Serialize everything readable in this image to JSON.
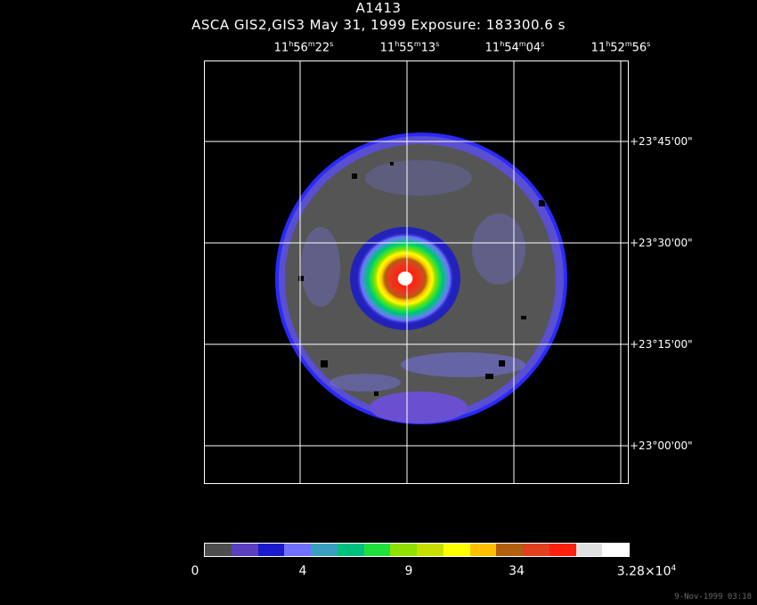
{
  "title": "A1413",
  "subtitle": "ASCA GIS2,GIS3 May 31, 1999 Exposure: 183300.6 s",
  "ra_labels": [
    {
      "h": "11",
      "m": "56",
      "s": "22"
    },
    {
      "h": "11",
      "m": "55",
      "s": "13"
    },
    {
      "h": "11",
      "m": "54",
      "s": "04"
    },
    {
      "h": "11",
      "m": "52",
      "s": "56"
    }
  ],
  "ra_units": {
    "h": "h",
    "m": "m",
    "s": "s"
  },
  "dec_labels": [
    "+23°45'00\"",
    "+23°30'00\"",
    "+23°15'00\"",
    "+23°00'00\""
  ],
  "colorbar": {
    "colors": [
      "#4d4d4d",
      "#5a3fbf",
      "#1a1acc",
      "#7070ff",
      "#3a9fbf",
      "#00c080",
      "#20e040",
      "#90e000",
      "#c8e000",
      "#ffff00",
      "#ffc000",
      "#b06010",
      "#e04020",
      "#ff2010",
      "#e0e0e0",
      "#ffffff"
    ],
    "tick_labels": [
      "0",
      "4",
      "9",
      "34"
    ],
    "max_mantissa": "3.28×10",
    "max_exponent": "4"
  },
  "footer": "9-Nov-1999 03:18"
}
